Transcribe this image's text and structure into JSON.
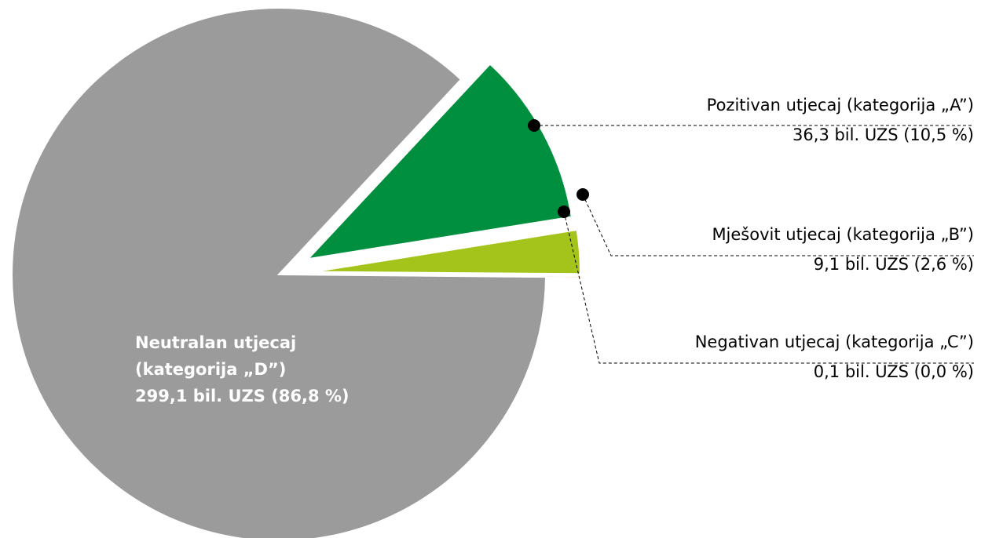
{
  "chart_data": {
    "type": "pie",
    "categories": [
      "Pozitivan utjecaj (kategorija „A”)",
      "Mješovit utjecaj (kategorija „B”)",
      "Negativan utjecaj (kategorija „C”)",
      "Neutralan utjecaj (kategorija „D”)"
    ],
    "values": [
      36.3,
      9.1,
      0.1,
      299.1
    ],
    "value_labels": [
      "36,3 bil. UZS (10,5 %)",
      "9,1 bil. UZS (2,6 %)",
      "0,1 bil. UZS (0,0 %)",
      "299,1 bil. UZS (86,8 %)"
    ],
    "colors": [
      "#008f3e",
      "#a5c41b",
      "#e8821e",
      "#9b9b9b"
    ]
  }
}
